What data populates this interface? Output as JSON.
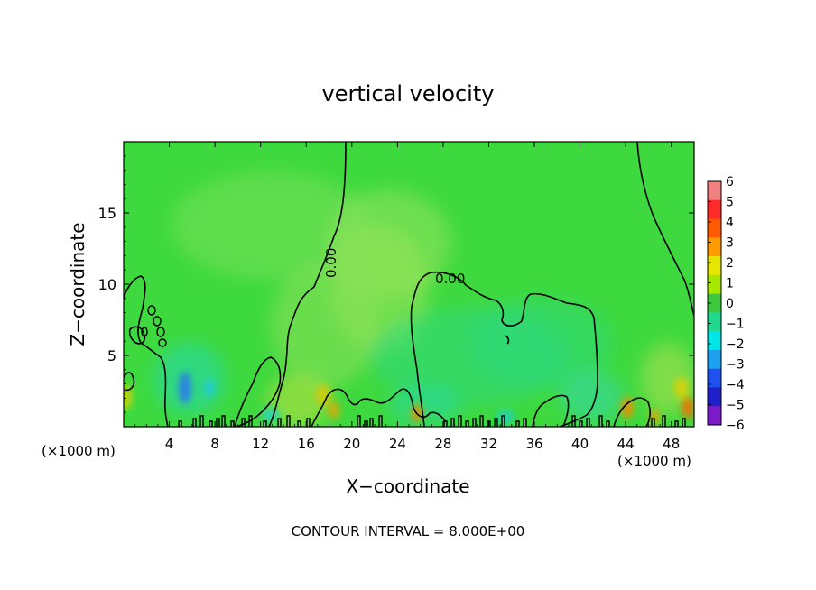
{
  "chart_data": {
    "type": "heatmap",
    "title": "vertical velocity",
    "xlabel": "X−coordinate",
    "ylabel": "Z−coordinate",
    "x_unit_left": "(×1000 m)",
    "x_unit_right": "(×1000 m)",
    "footer": "CONTOUR INTERVAL = 8.000E+00",
    "xlim": [
      0,
      50
    ],
    "ylim": [
      0,
      20
    ],
    "x_ticks": [
      "4",
      "8",
      "12",
      "16",
      "20",
      "24",
      "28",
      "32",
      "36",
      "40",
      "44",
      "48"
    ],
    "y_ticks": [
      "5",
      "10",
      "15"
    ],
    "colorbar": {
      "min": -6,
      "max": 6,
      "labels": [
        "6",
        "5",
        "4",
        "3",
        "2",
        "1",
        "0",
        "−1",
        "−2",
        "−3",
        "−4",
        "−5",
        "−6"
      ],
      "colors": [
        "#f08080",
        "#ff2a2a",
        "#ff5a00",
        "#ff9a00",
        "#e6e600",
        "#a8e800",
        "#3ec83e",
        "#20d890",
        "#00e6e6",
        "#1ea0f0",
        "#2050f0",
        "#2020c8",
        "#7a1ac8"
      ]
    },
    "background_color": "#3ed93e",
    "contour_label": "0.00",
    "contour_level": 0
  }
}
